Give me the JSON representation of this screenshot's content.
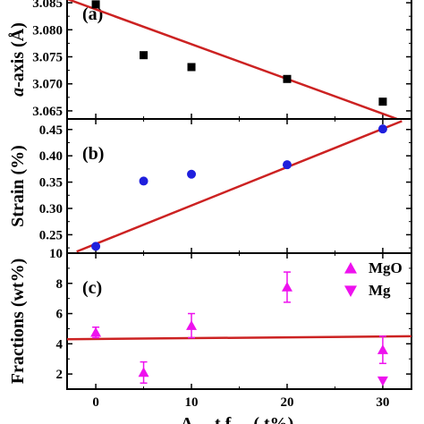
{
  "chart_data": [
    {
      "panel": "(a)",
      "type": "scatter",
      "ylabel_italic": "a",
      "ylabel_rest": "-axis (Å)",
      "xlim": [
        -3,
        33
      ],
      "ylim": [
        3.0635,
        3.0865
      ],
      "yticks": [
        "3.065",
        "3.070",
        "3.075",
        "3.080",
        "3.085"
      ],
      "grid": false,
      "series": [
        {
          "marker": "square",
          "color": "#000000",
          "x": [
            0,
            5,
            10,
            20,
            30
          ],
          "y": [
            3.0847,
            3.0753,
            3.0731,
            3.0709,
            3.0667
          ]
        }
      ],
      "fit": {
        "color": "#cc2222",
        "x": [
          -3,
          31.5
        ],
        "y": [
          3.0857,
          3.0635
        ]
      }
    },
    {
      "panel": "(b)",
      "type": "scatter",
      "ylabel": "Strain (%)",
      "xlim": [
        -3,
        33
      ],
      "ylim": [
        0.215,
        0.47
      ],
      "yticks": [
        "0.25",
        "0.30",
        "0.35",
        "0.40",
        "0.45"
      ],
      "grid": false,
      "series": [
        {
          "marker": "circle",
          "color": "#1f1fdd",
          "x": [
            0,
            5,
            10,
            20,
            30
          ],
          "y": [
            0.228,
            0.352,
            0.365,
            0.383,
            0.451
          ]
        }
      ],
      "fit": {
        "color": "#cc2222",
        "x": [
          -2,
          32
        ],
        "y": [
          0.218,
          0.466
        ]
      }
    },
    {
      "panel": "(c)",
      "type": "scatter",
      "ylabel": "Fractions (wt%)",
      "xlabel": "A  ...  t  f  ...  (  t%)",
      "xlim": [
        -3,
        33
      ],
      "ylim": [
        1,
        10
      ],
      "xticks": [
        "0",
        "10",
        "20",
        "30"
      ],
      "yticks": [
        "2",
        "4",
        "6",
        "8",
        "10"
      ],
      "grid": false,
      "legend": {
        "placement": "top-right",
        "entries": [
          "MgO",
          "Mg"
        ]
      },
      "series": [
        {
          "name": "MgO",
          "marker": "triangle-up",
          "color": "#ee11ee",
          "x": [
            0,
            5,
            10,
            20,
            30
          ],
          "y": [
            4.75,
            2.1,
            5.2,
            7.75,
            3.6
          ],
          "err": [
            0.35,
            0.7,
            0.8,
            1.0,
            0.9
          ]
        },
        {
          "name": "Mg",
          "marker": "triangle-down",
          "color": "#ee11ee",
          "x": [
            30
          ],
          "y": [
            1.55
          ],
          "err": [
            0
          ]
        }
      ],
      "fit": {
        "color": "#cc2222",
        "x": [
          -3,
          33
        ],
        "y": [
          4.3,
          4.5
        ]
      }
    }
  ]
}
